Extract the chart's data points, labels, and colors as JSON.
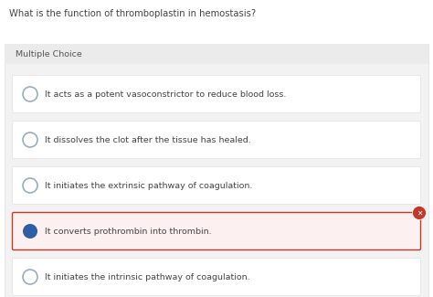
{
  "question": "What is the function of thromboplastin in hemostasis?",
  "section_label": "Multiple Choice",
  "options": [
    {
      "text": "It acts as a potent vasoconstrictor to reduce blood loss.",
      "selected": false,
      "correct": null
    },
    {
      "text": "It dissolves the clot after the tissue has healed.",
      "selected": false,
      "correct": null
    },
    {
      "text": "It initiates the extrinsic pathway of coagulation.",
      "selected": false,
      "correct": null
    },
    {
      "text": "It converts prothrombin into thrombin.",
      "selected": true,
      "correct": false
    },
    {
      "text": "It initiates the intrinsic pathway of coagulation.",
      "selected": false,
      "correct": null
    }
  ],
  "bg_color": "#ffffff",
  "panel_color": "#f2f2f2",
  "panel_header_color": "#ebebeb",
  "option_bg": "#ffffff",
  "option_bg_selected": "#fdf0f0",
  "option_border_selected": "#c0392b",
  "option_border_normal": "#e0e0e0",
  "circle_border_unselected": "#9aacbe",
  "circle_color_selected": "#2e5fa3",
  "question_color": "#444444",
  "label_color": "#555555",
  "option_text_color": "#444444",
  "wrong_icon_color": "#c0392b",
  "question_fontsize": 7.2,
  "option_fontsize": 6.8,
  "label_fontsize": 6.8
}
